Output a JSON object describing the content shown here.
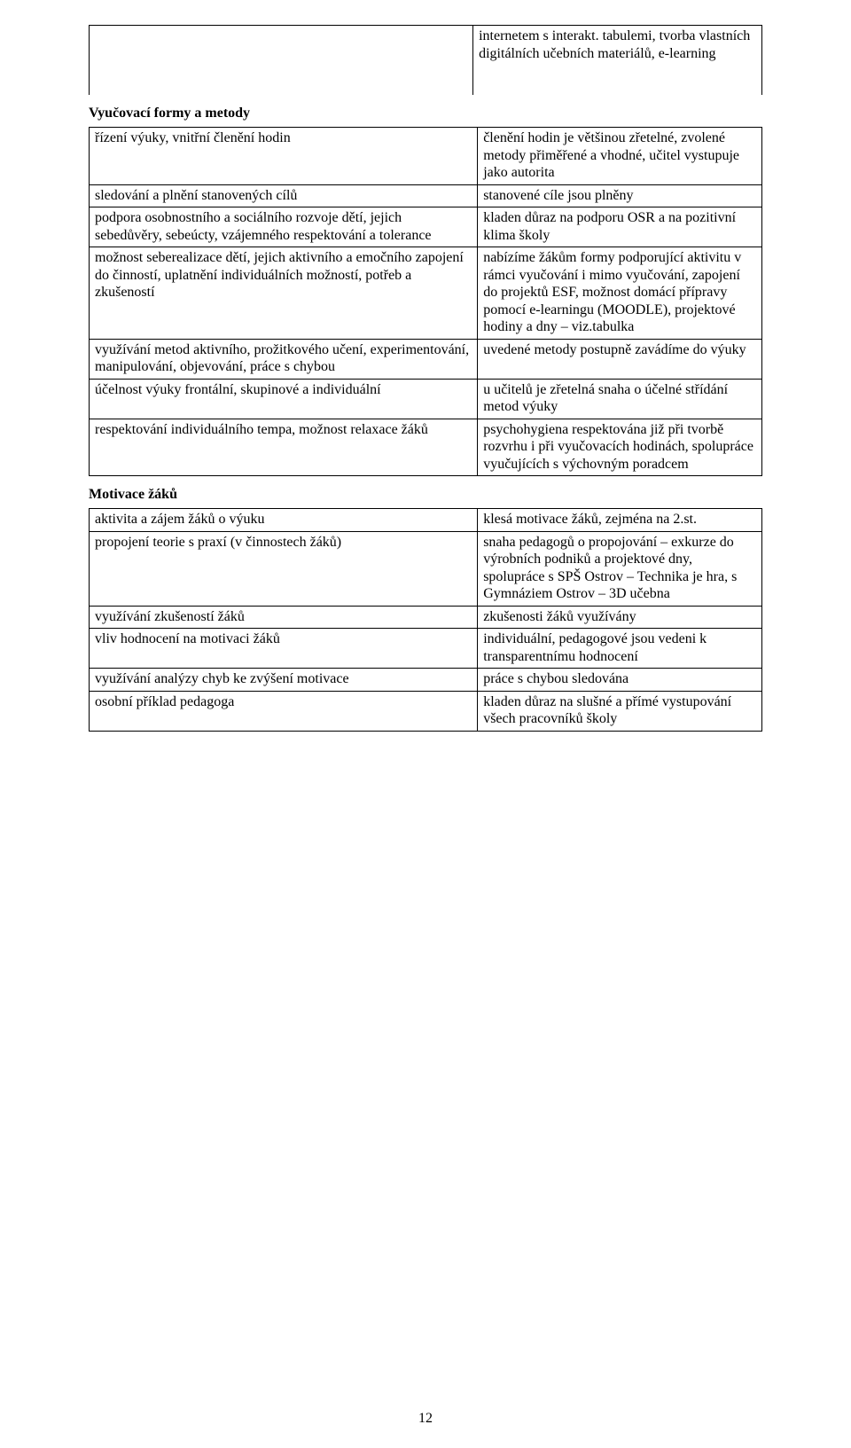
{
  "topRight": "internetem s interakt. tabulemi, tvorba vlastních digitálních učebních materiálů, e-learning",
  "section1": {
    "title": "Vyučovací formy a metody",
    "rows": [
      {
        "l": "řízení výuky, vnitřní členění hodin",
        "r": "členění hodin je většinou zřetelné, zvolené metody přiměřené a vhodné, učitel vystupuje jako autorita"
      },
      {
        "l": "sledování a plnění stanovených cílů",
        "r": "stanovené cíle jsou plněny"
      },
      {
        "l": "podpora osobnostního a sociálního rozvoje dětí, jejich sebedůvěry, sebeúcty, vzájemného respektování a tolerance",
        "r": "kladen důraz na podporu OSR a na pozitivní klima školy"
      },
      {
        "l": "možnost seberealizace dětí, jejich aktivního a emočního zapojení do činností, uplatnění individuálních možností, potřeb a zkušeností",
        "r": "nabízíme žákům formy podporující aktivitu v rámci vyučování i mimo vyučování, zapojení do projektů ESF, možnost domácí přípravy pomocí e-learningu (MOODLE), projektové hodiny a dny – viz.tabulka"
      },
      {
        "l": "využívání metod aktivního, prožitkového učení, experimentování, manipulování, objevování, práce s chybou",
        "r": "uvedené metody postupně zavádíme do výuky"
      },
      {
        "l": "účelnost výuky frontální, skupinové a individuální",
        "r": "u učitelů je zřetelná snaha o účelné střídání metod výuky"
      },
      {
        "l": "respektování individuálního tempa, možnost relaxace žáků",
        "r": "psychohygiena respektována již při tvorbě rozvrhu i při vyučovacích hodinách, spolupráce vyučujících s výchovným poradcem"
      }
    ]
  },
  "section2": {
    "title": "Motivace žáků",
    "rows": [
      {
        "l": "aktivita a zájem žáků o výuku",
        "r": "klesá motivace žáků, zejména na 2.st."
      },
      {
        "l": "propojení teorie s praxí (v činnostech žáků)",
        "r": "snaha pedagogů o propojování – exkurze do výrobních podniků a projektové dny, spolupráce s SPŠ Ostrov – Technika je hra, s Gymnáziem Ostrov – 3D učebna"
      },
      {
        "l": "využívání zkušeností žáků",
        "r": "zkušenosti žáků využívány"
      },
      {
        "l": "vliv hodnocení na motivaci žáků",
        "r": "individuální, pedagogové jsou vedeni k transparentnímu hodnocení"
      },
      {
        "l": "využívání analýzy chyb ke zvýšení motivace",
        "r": "práce s chybou sledována"
      },
      {
        "l": "osobní příklad pedagoga",
        "r": "kladen důraz na slušné a přímé vystupování všech pracovníků školy"
      }
    ]
  },
  "pageNumber": "12"
}
